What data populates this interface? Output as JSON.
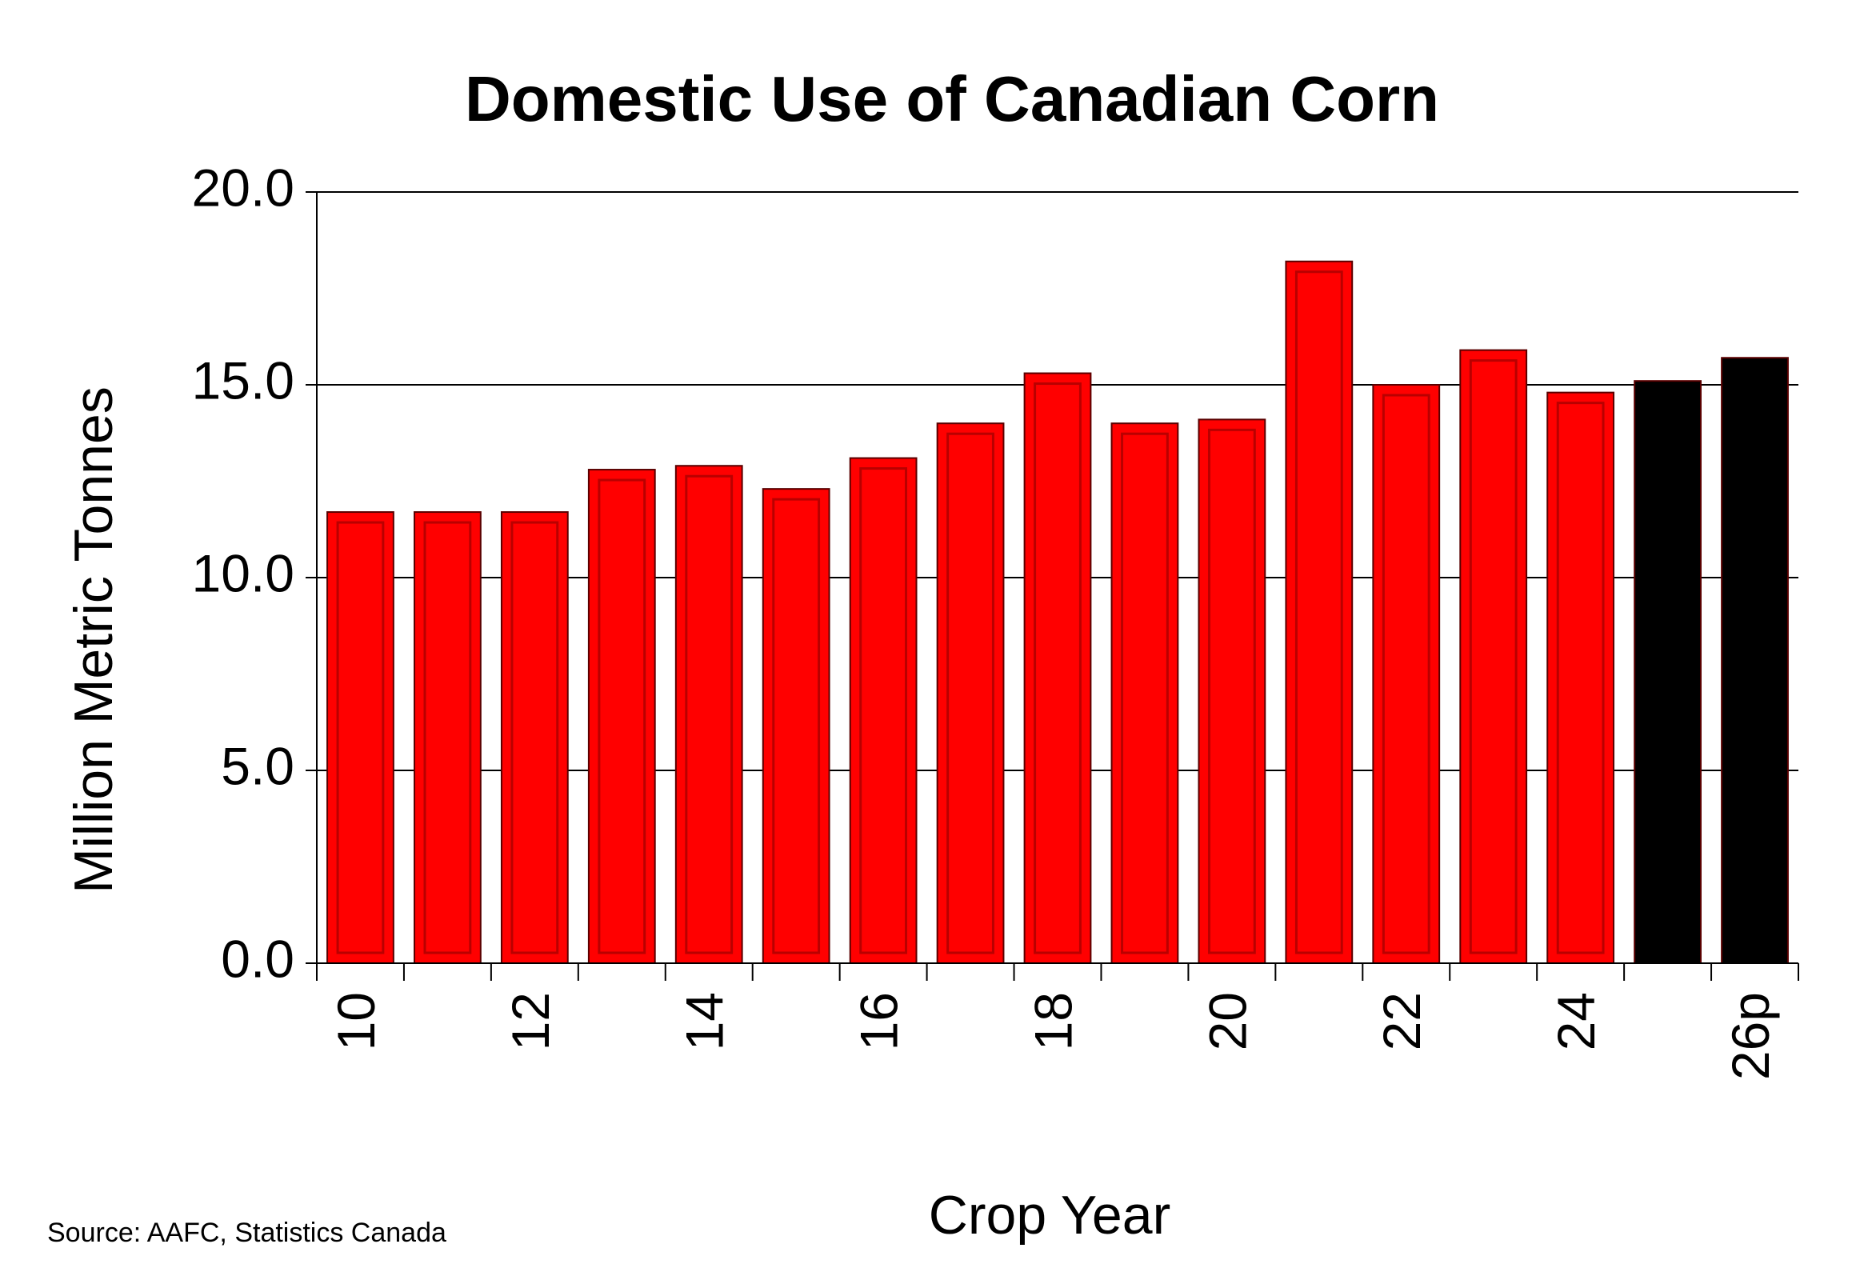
{
  "chart_data": {
    "type": "bar",
    "title": "Domestic Use of Canadian Corn",
    "y_label": "Million Metric Tonnes",
    "x_label": "Crop Year",
    "source": "Source:  AAFC, Statistics Canada",
    "categories": [
      "10",
      null,
      "12",
      null,
      "14",
      null,
      "16",
      null,
      "18",
      null,
      "20",
      null,
      "22",
      null,
      "24",
      null,
      "26p"
    ],
    "values": [
      11.7,
      11.7,
      11.7,
      12.8,
      12.9,
      12.3,
      13.1,
      14.0,
      15.3,
      14.0,
      14.1,
      18.2,
      15.0,
      15.9,
      14.8,
      15.1,
      15.7
    ],
    "colors": [
      "#ff0000",
      "#ff0000",
      "#ff0000",
      "#ff0000",
      "#ff0000",
      "#ff0000",
      "#ff0000",
      "#ff0000",
      "#ff0000",
      "#ff0000",
      "#ff0000",
      "#ff0000",
      "#ff0000",
      "#ff0000",
      "#ff0000",
      "#000000",
      "#000000"
    ],
    "ylim": [
      0,
      20
    ],
    "yticks": [
      {
        "value": 0,
        "label": "0.0"
      },
      {
        "value": 5,
        "label": "5.0"
      },
      {
        "value": 10,
        "label": "10.0"
      },
      {
        "value": 15,
        "label": "15.0"
      },
      {
        "value": 20,
        "label": "20.0"
      }
    ],
    "grid": true
  }
}
